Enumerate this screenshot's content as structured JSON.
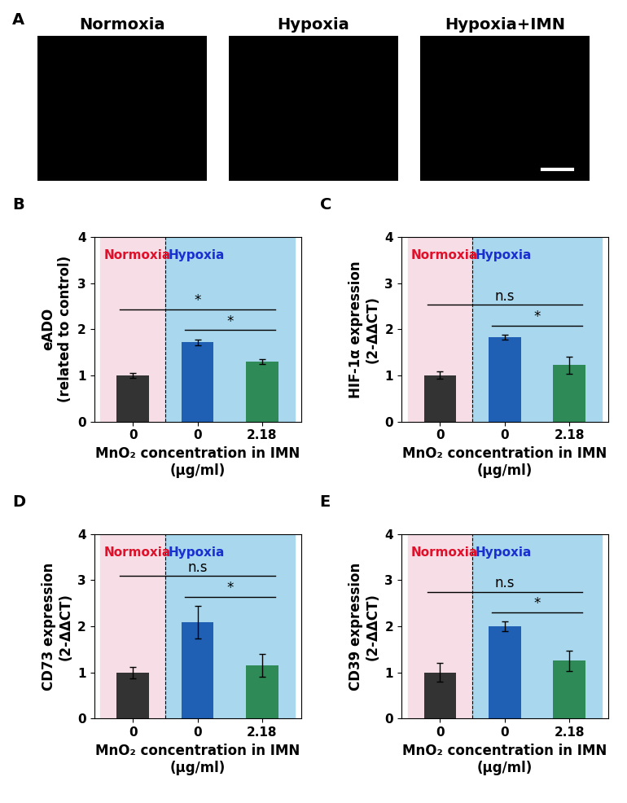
{
  "panel_labels": [
    "A",
    "B",
    "C",
    "D",
    "E"
  ],
  "images": {
    "titles": [
      "Normoxia",
      "Hypoxia",
      "Hypoxia+IMN"
    ]
  },
  "chart_data": [
    {
      "type": "bar",
      "categories": [
        "0",
        "0",
        "2.18"
      ],
      "conditions": [
        "Normoxia",
        "Hypoxia",
        "Hypoxia"
      ],
      "values": [
        1.0,
        1.72,
        1.3
      ],
      "errors": [
        0.05,
        0.06,
        0.05
      ],
      "colors": [
        "#333333",
        "#1f5fb4",
        "#2e8b57"
      ],
      "x_label": "MnO₂ concentration in IMN\n(μg/ml)",
      "y_label": "eADO\n(related to control)",
      "ylim": [
        0,
        4
      ],
      "yticks": [
        0,
        1,
        2,
        3,
        4
      ],
      "comparisons": [
        {
          "from": 0,
          "to": 2,
          "label": "*"
        },
        {
          "from": 1,
          "to": 2,
          "label": "*"
        }
      ]
    },
    {
      "type": "bar",
      "categories": [
        "0",
        "0",
        "2.18"
      ],
      "conditions": [
        "Normoxia",
        "Hypoxia",
        "Hypoxia"
      ],
      "values": [
        1.0,
        1.83,
        1.22
      ],
      "errors": [
        0.08,
        0.05,
        0.18
      ],
      "colors": [
        "#333333",
        "#1f5fb4",
        "#2e8b57"
      ],
      "x_label": "MnO₂ concentration in IMN\n(μg/ml)",
      "y_label": "HIF-1α expression\n(2-ΔΔCT)",
      "ylim": [
        0,
        4
      ],
      "yticks": [
        0,
        1,
        2,
        3,
        4
      ],
      "comparisons": [
        {
          "from": 0,
          "to": 2,
          "label": "n.s"
        },
        {
          "from": 1,
          "to": 2,
          "label": "*"
        }
      ]
    },
    {
      "type": "bar",
      "categories": [
        "0",
        "0",
        "2.18"
      ],
      "conditions": [
        "Normoxia",
        "Hypoxia",
        "Hypoxia"
      ],
      "values": [
        1.0,
        2.09,
        1.15
      ],
      "errors": [
        0.12,
        0.35,
        0.25
      ],
      "colors": [
        "#333333",
        "#1f5fb4",
        "#2e8b57"
      ],
      "x_label": "MnO₂ concentration in IMN\n(μg/ml)",
      "y_label": "CD73 expression\n(2-ΔΔCT)",
      "ylim": [
        0,
        4
      ],
      "yticks": [
        0,
        1,
        2,
        3,
        4
      ],
      "comparisons": [
        {
          "from": 0,
          "to": 2,
          "label": "n.s"
        },
        {
          "from": 1,
          "to": 2,
          "label": "*"
        }
      ]
    },
    {
      "type": "bar",
      "categories": [
        "0",
        "0",
        "2.18"
      ],
      "conditions": [
        "Normoxia",
        "Hypoxia",
        "Hypoxia"
      ],
      "values": [
        1.0,
        2.0,
        1.26
      ],
      "errors": [
        0.2,
        0.1,
        0.22
      ],
      "colors": [
        "#333333",
        "#1f5fb4",
        "#2e8b57"
      ],
      "x_label": "MnO₂ concentration in IMN\n(μg/ml)",
      "y_label": "CD39 expression\n(2-ΔΔCT)",
      "ylim": [
        0,
        4
      ],
      "yticks": [
        0,
        1,
        2,
        3,
        4
      ],
      "comparisons": [
        {
          "from": 0,
          "to": 2,
          "label": "n.s"
        },
        {
          "from": 1,
          "to": 2,
          "label": "*"
        }
      ]
    }
  ]
}
